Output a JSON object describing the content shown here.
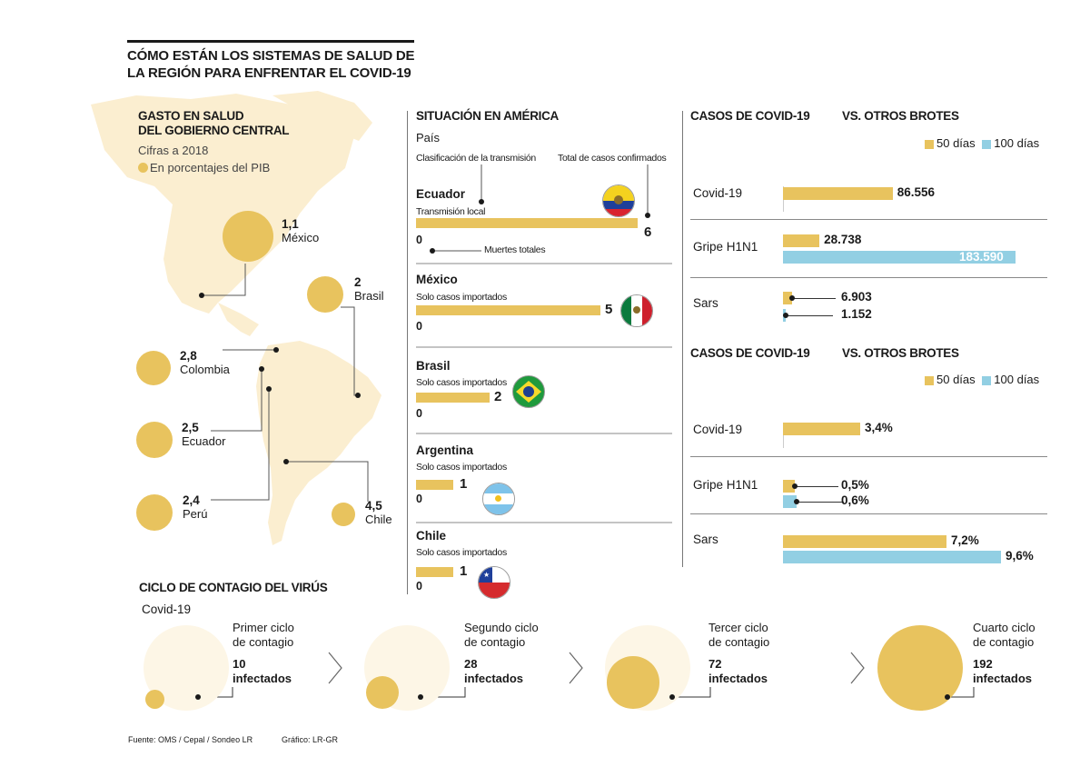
{
  "title_lines": [
    "CÓMO ESTÁN LOS SISTEMAS DE SALUD DE",
    "LA REGIÓN PARA ENFRENTAR EL COVID-19"
  ],
  "gasto": {
    "title_lines": [
      "GASTO EN SALUD",
      "DEL GOBIERNO CENTRAL"
    ],
    "subtitle": "Cifras a 2018",
    "legend": "En porcentajes del PIB",
    "items": [
      {
        "value": "1,1",
        "country": "México",
        "num": 1.1
      },
      {
        "value": "2",
        "country": "Brasil",
        "num": 2
      },
      {
        "value": "2,8",
        "country": "Colombia",
        "num": 2.8
      },
      {
        "value": "2,5",
        "country": "Ecuador",
        "num": 2.5
      },
      {
        "value": "2,4",
        "country": "Perú",
        "num": 2.4
      },
      {
        "value": "4,5",
        "country": "Chile",
        "num": 4.5
      }
    ]
  },
  "situacion": {
    "title": "SITUACIÓN EN AMÉRICA",
    "guide": {
      "pais": "País",
      "clasificacion": "Clasificación de la transmisión",
      "total": "Total de casos confirmados",
      "muertes": "Muertes totales"
    },
    "countries": [
      {
        "name": "Ecuador",
        "classification": "Transmisión local",
        "cases": "6",
        "deaths": "0",
        "cases_num": 6
      },
      {
        "name": "México",
        "classification": "Solo casos importados",
        "cases": "5",
        "deaths": "0",
        "cases_num": 5
      },
      {
        "name": "Brasil",
        "classification": "Solo casos importados",
        "cases": "2",
        "deaths": "0",
        "cases_num": 2
      },
      {
        "name": "Argentina",
        "classification": "Solo casos importados",
        "cases": "1",
        "deaths": "0",
        "cases_num": 1
      },
      {
        "name": "Chile",
        "classification": "Solo casos importados",
        "cases": "1",
        "deaths": "0",
        "cases_num": 1
      }
    ]
  },
  "colors": {
    "gold": "#e8c35e",
    "blue": "#92cfe3",
    "pale": "#fdf6e6",
    "map": "#fbeed0"
  },
  "chart_data": [
    {
      "type": "bar",
      "title": "CASOS DE COVID-19",
      "title2": "VS. OTROS BROTES",
      "legend": [
        "50 días",
        "100 días"
      ],
      "categories": [
        "Covid-19",
        "Gripe H1N1",
        "Sars"
      ],
      "series": [
        {
          "name": "50 días",
          "values": [
            86556,
            28738,
            6903
          ],
          "labels": [
            "86.556",
            "28.738",
            "6.903"
          ]
        },
        {
          "name": "100 días",
          "values": [
            null,
            183590,
            1152
          ],
          "labels": [
            "",
            "183.590",
            "1.152"
          ]
        }
      ]
    },
    {
      "type": "bar",
      "title": "CASOS DE COVID-19",
      "title2": "VS. OTROS BROTES",
      "legend": [
        "50 días",
        "100 días"
      ],
      "categories": [
        "Covid-19",
        "Gripe H1N1",
        "Sars"
      ],
      "series": [
        {
          "name": "50 días",
          "values": [
            3.4,
            0.5,
            7.2
          ],
          "labels": [
            "3,4%",
            "0,5%",
            "7,2%"
          ]
        },
        {
          "name": "100 días",
          "values": [
            null,
            0.6,
            9.6
          ],
          "labels": [
            "",
            "0,6%",
            "9,6%"
          ]
        }
      ]
    }
  ],
  "ciclo": {
    "title": "CICLO DE CONTAGIO DEL VIRÚS",
    "subtitle": "Covid-19",
    "stages": [
      {
        "name_lines": [
          "Primer ciclo",
          "de contagio"
        ],
        "count": "10",
        "unit": "infectados",
        "num": 10
      },
      {
        "name_lines": [
          "Segundo ciclo",
          "de contagio"
        ],
        "count": "28",
        "unit": "infectados",
        "num": 28
      },
      {
        "name_lines": [
          "Tercer ciclo",
          "de contagio"
        ],
        "count": "72",
        "unit": "infectados",
        "num": 72
      },
      {
        "name_lines": [
          "Cuarto ciclo",
          "de contagio"
        ],
        "count": "192",
        "unit": "infectados",
        "num": 192
      }
    ]
  },
  "footer": {
    "source": "Fuente: OMS / Cepal / Sondeo LR",
    "graphic": "Gráfico: LR-GR"
  }
}
